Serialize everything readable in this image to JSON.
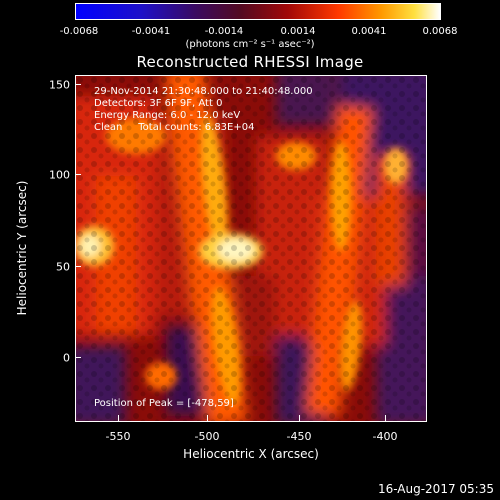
{
  "colorbar": {
    "ticks": [
      "-0.0068",
      "-0.0041",
      "-0.0014",
      "0.0014",
      "0.0041",
      "0.0068"
    ],
    "units": "(photons cm⁻² s⁻¹ asec⁻²)"
  },
  "title": "Reconstructed RHESSI Image",
  "info": {
    "time": "29-Nov-2014 21:30:48.000 to 21:40:48.000",
    "detectors": "Detectors: 3F 6F 9F, Att 0",
    "energy": "Energy Range: 6.0 - 12.0 keV",
    "method": "Clean     Total counts: 6.83E+04",
    "peak": "Position of Peak = [-478,59]"
  },
  "axes": {
    "xlabel": "Heliocentric X (arcsec)",
    "ylabel": "Heliocentric Y (arcsec)",
    "xticks": [
      "-550",
      "-500",
      "-450",
      "-400"
    ],
    "yticks": [
      "150",
      "100",
      "50",
      "0"
    ]
  },
  "stamp": "16-Aug-2017 05:35"
}
